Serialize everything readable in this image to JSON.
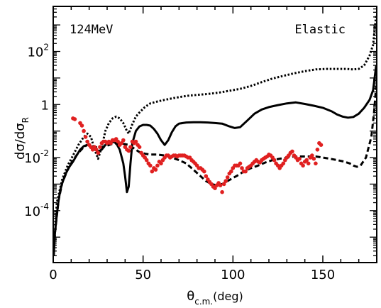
{
  "chart_data": {
    "type": "line",
    "title": "",
    "annotations": {
      "energy": "124MeV",
      "channel": "Elastic"
    },
    "xlabel": {
      "main": "θ",
      "sub": "c.m.",
      "unit": "(deg)"
    },
    "ylabel": {
      "main": "dσ/dσ",
      "sub": "R"
    },
    "xlim": [
      0,
      180
    ],
    "ylim": [
      1.1e-06,
      5000
    ],
    "yscale": "log",
    "x_ticks": [
      {
        "value": 0,
        "label": "0"
      },
      {
        "value": 50,
        "label": "50"
      },
      {
        "value": 100,
        "label": "100"
      },
      {
        "value": 150,
        "label": "150"
      }
    ],
    "y_ticks": [
      {
        "value": 0.0001,
        "base": "10",
        "exp": "-4"
      },
      {
        "value": 0.01,
        "base": "10",
        "exp": "-2"
      },
      {
        "value": 1,
        "base": "1",
        "exp": ""
      },
      {
        "value": 100,
        "base": "10",
        "exp": "2"
      }
    ],
    "series": [
      {
        "style": "solid",
        "color": "#000000",
        "points": [
          [
            0.3,
            2e-06
          ],
          [
            1,
            1.5e-05
          ],
          [
            2,
            7e-05
          ],
          [
            3,
            0.00025
          ],
          [
            4,
            0.0006
          ],
          [
            5,
            0.0011
          ],
          [
            7,
            0.0025
          ],
          [
            9,
            0.0045
          ],
          [
            11,
            0.007
          ],
          [
            13,
            0.012
          ],
          [
            15,
            0.02
          ],
          [
            17,
            0.027
          ],
          [
            19,
            0.03
          ],
          [
            21,
            0.027
          ],
          [
            23,
            0.02
          ],
          [
            25,
            0.017
          ],
          [
            27,
            0.02
          ],
          [
            29,
            0.03
          ],
          [
            31,
            0.035
          ],
          [
            33,
            0.04
          ],
          [
            35,
            0.035
          ],
          [
            37,
            0.02
          ],
          [
            39,
            0.006
          ],
          [
            40,
            0.002
          ],
          [
            41,
            0.0005
          ],
          [
            42,
            0.0008
          ],
          [
            43,
            0.006
          ],
          [
            44,
            0.035
          ],
          [
            46,
            0.1
          ],
          [
            48,
            0.15
          ],
          [
            50,
            0.17
          ],
          [
            52,
            0.17
          ],
          [
            54,
            0.16
          ],
          [
            56,
            0.12
          ],
          [
            58,
            0.08
          ],
          [
            60,
            0.045
          ],
          [
            62,
            0.03
          ],
          [
            64,
            0.045
          ],
          [
            66,
            0.09
          ],
          [
            68,
            0.15
          ],
          [
            70,
            0.19
          ],
          [
            74,
            0.21
          ],
          [
            78,
            0.215
          ],
          [
            82,
            0.215
          ],
          [
            86,
            0.21
          ],
          [
            90,
            0.2
          ],
          [
            94,
            0.19
          ],
          [
            98,
            0.15
          ],
          [
            101,
            0.13
          ],
          [
            104,
            0.14
          ],
          [
            108,
            0.25
          ],
          [
            112,
            0.45
          ],
          [
            116,
            0.65
          ],
          [
            120,
            0.8
          ],
          [
            125,
            0.95
          ],
          [
            130,
            1.1
          ],
          [
            135,
            1.2
          ],
          [
            140,
            1.05
          ],
          [
            145,
            0.9
          ],
          [
            150,
            0.75
          ],
          [
            155,
            0.55
          ],
          [
            158,
            0.42
          ],
          [
            161,
            0.35
          ],
          [
            164,
            0.32
          ],
          [
            167,
            0.34
          ],
          [
            170,
            0.45
          ],
          [
            173,
            0.75
          ],
          [
            176,
            1.5
          ],
          [
            178,
            3.5
          ],
          [
            179.7,
            30
          ]
        ]
      },
      {
        "style": "dotted",
        "color": "#000000",
        "points": [
          [
            0.3,
            3e-06
          ],
          [
            2,
            0.0002
          ],
          [
            5,
            0.0015
          ],
          [
            8,
            0.005
          ],
          [
            11,
            0.012
          ],
          [
            14,
            0.03
          ],
          [
            17,
            0.06
          ],
          [
            19,
            0.08
          ],
          [
            21,
            0.06
          ],
          [
            23,
            0.02
          ],
          [
            25,
            0.009
          ],
          [
            27,
            0.025
          ],
          [
            29,
            0.1
          ],
          [
            31,
            0.2
          ],
          [
            33,
            0.3
          ],
          [
            35,
            0.35
          ],
          [
            37,
            0.3
          ],
          [
            39,
            0.2
          ],
          [
            41,
            0.1
          ],
          [
            42,
            0.08
          ],
          [
            44,
            0.18
          ],
          [
            46,
            0.35
          ],
          [
            48,
            0.5
          ],
          [
            51,
            0.8
          ],
          [
            54,
            1.1
          ],
          [
            58,
            1.3
          ],
          [
            62,
            1.5
          ],
          [
            68,
            1.8
          ],
          [
            74,
            2.1
          ],
          [
            80,
            2.3
          ],
          [
            86,
            2.5
          ],
          [
            92,
            2.8
          ],
          [
            98,
            3.3
          ],
          [
            104,
            3.9
          ],
          [
            110,
            5
          ],
          [
            116,
            7
          ],
          [
            122,
            9.5
          ],
          [
            128,
            12
          ],
          [
            134,
            15
          ],
          [
            140,
            18
          ],
          [
            146,
            21
          ],
          [
            152,
            22
          ],
          [
            158,
            22
          ],
          [
            163,
            22
          ],
          [
            167,
            21
          ],
          [
            170,
            22
          ],
          [
            173,
            30
          ],
          [
            176,
            70
          ],
          [
            178,
            180
          ],
          [
            179.7,
            2500
          ]
        ]
      },
      {
        "style": "dashed",
        "color": "#000000",
        "points": [
          [
            0.3,
            2e-06
          ],
          [
            1,
            1.5e-05
          ],
          [
            3,
            0.00025
          ],
          [
            5,
            0.0011
          ],
          [
            8,
            0.0035
          ],
          [
            11,
            0.008
          ],
          [
            14,
            0.015
          ],
          [
            17,
            0.025
          ],
          [
            19,
            0.03
          ],
          [
            21,
            0.028
          ],
          [
            23,
            0.025
          ],
          [
            25,
            0.024
          ],
          [
            28,
            0.025
          ],
          [
            30,
            0.028
          ],
          [
            33,
            0.033
          ],
          [
            36,
            0.035
          ],
          [
            39,
            0.033
          ],
          [
            42,
            0.03
          ],
          [
            45,
            0.022
          ],
          [
            48,
            0.016
          ],
          [
            51,
            0.014
          ],
          [
            54,
            0.013
          ],
          [
            58,
            0.013
          ],
          [
            62,
            0.012
          ],
          [
            66,
            0.01
          ],
          [
            70,
            0.008
          ],
          [
            74,
            0.006
          ],
          [
            78,
            0.0035
          ],
          [
            82,
            0.002
          ],
          [
            85,
            0.0013
          ],
          [
            88,
            0.001
          ],
          [
            91,
            0.0009
          ],
          [
            94,
            0.001
          ],
          [
            97,
            0.0013
          ],
          [
            100,
            0.0017
          ],
          [
            103,
            0.0022
          ],
          [
            106,
            0.003
          ],
          [
            110,
            0.004
          ],
          [
            114,
            0.005
          ],
          [
            118,
            0.0065
          ],
          [
            122,
            0.008
          ],
          [
            126,
            0.009
          ],
          [
            130,
            0.01
          ],
          [
            134,
            0.011
          ],
          [
            138,
            0.011
          ],
          [
            142,
            0.011
          ],
          [
            146,
            0.011
          ],
          [
            150,
            0.01
          ],
          [
            154,
            0.009
          ],
          [
            158,
            0.008
          ],
          [
            162,
            0.007
          ],
          [
            165,
            0.006
          ],
          [
            167,
            0.005
          ],
          [
            169,
            0.0045
          ],
          [
            171,
            0.005
          ],
          [
            174,
            0.01
          ],
          [
            177,
            0.06
          ],
          [
            178.5,
            0.5
          ],
          [
            179.7,
            5
          ]
        ]
      }
    ],
    "scatter": {
      "color": "#e02020",
      "points": [
        [
          11,
          0.3
        ],
        [
          12,
          0.28
        ],
        [
          15,
          0.2
        ],
        [
          16,
          0.16
        ],
        [
          17,
          0.1
        ],
        [
          18,
          0.06
        ],
        [
          19,
          0.04
        ],
        [
          20,
          0.03
        ],
        [
          21,
          0.025
        ],
        [
          22,
          0.02
        ],
        [
          23,
          0.025
        ],
        [
          24,
          0.02
        ],
        [
          25,
          0.015
        ],
        [
          26,
          0.025
        ],
        [
          27,
          0.035
        ],
        [
          28,
          0.04
        ],
        [
          29,
          0.04
        ],
        [
          30,
          0.035
        ],
        [
          31,
          0.04
        ],
        [
          32,
          0.035
        ],
        [
          33,
          0.045
        ],
        [
          34,
          0.045
        ],
        [
          35,
          0.05
        ],
        [
          36,
          0.04
        ],
        [
          37,
          0.03
        ],
        [
          38,
          0.035
        ],
        [
          39,
          0.045
        ],
        [
          40,
          0.025
        ],
        [
          41,
          0.02
        ],
        [
          42,
          0.018
        ],
        [
          43,
          0.025
        ],
        [
          44,
          0.04
        ],
        [
          45,
          0.035
        ],
        [
          46,
          0.04
        ],
        [
          47,
          0.03
        ],
        [
          48,
          0.025
        ],
        [
          49,
          0.015
        ],
        [
          50,
          0.012
        ],
        [
          51,
          0.01
        ],
        [
          52,
          0.008
        ],
        [
          53,
          0.006
        ],
        [
          54,
          0.005
        ],
        [
          55,
          0.003
        ],
        [
          56,
          0.004
        ],
        [
          57,
          0.0035
        ],
        [
          58,
          0.005
        ],
        [
          59,
          0.007
        ],
        [
          60,
          0.006
        ],
        [
          61,
          0.008
        ],
        [
          62,
          0.01
        ],
        [
          63,
          0.012
        ],
        [
          64,
          0.012
        ],
        [
          65,
          0.01
        ],
        [
          66,
          0.011
        ],
        [
          67,
          0.012
        ],
        [
          68,
          0.012
        ],
        [
          69,
          0.011
        ],
        [
          70,
          0.012
        ],
        [
          71,
          0.012
        ],
        [
          72,
          0.012
        ],
        [
          73,
          0.012
        ],
        [
          74,
          0.011
        ],
        [
          75,
          0.01
        ],
        [
          76,
          0.01
        ],
        [
          77,
          0.008
        ],
        [
          78,
          0.007
        ],
        [
          79,
          0.006
        ],
        [
          80,
          0.005
        ],
        [
          81,
          0.004
        ],
        [
          82,
          0.004
        ],
        [
          83,
          0.0035
        ],
        [
          84,
          0.003
        ],
        [
          85,
          0.002
        ],
        [
          86,
          0.0015
        ],
        [
          87,
          0.0012
        ],
        [
          88,
          0.001
        ],
        [
          89,
          0.0008
        ],
        [
          90,
          0.0007
        ],
        [
          91,
          0.0009
        ],
        [
          92,
          0.0011
        ],
        [
          93,
          0.0009
        ],
        [
          94,
          0.0005
        ],
        [
          95,
          0.001
        ],
        [
          96,
          0.0013
        ],
        [
          97,
          0.0018
        ],
        [
          98,
          0.0025
        ],
        [
          99,
          0.003
        ],
        [
          100,
          0.004
        ],
        [
          101,
          0.005
        ],
        [
          102,
          0.005
        ],
        [
          103,
          0.005
        ],
        [
          104,
          0.006
        ],
        [
          105,
          0.004
        ],
        [
          106,
          0.003
        ],
        [
          107,
          0.003
        ],
        [
          108,
          0.004
        ],
        [
          109,
          0.0045
        ],
        [
          110,
          0.005
        ],
        [
          111,
          0.006
        ],
        [
          112,
          0.007
        ],
        [
          113,
          0.008
        ],
        [
          114,
          0.007
        ],
        [
          115,
          0.0065
        ],
        [
          116,
          0.008
        ],
        [
          117,
          0.009
        ],
        [
          118,
          0.01
        ],
        [
          119,
          0.011
        ],
        [
          120,
          0.013
        ],
        [
          121,
          0.012
        ],
        [
          122,
          0.01
        ],
        [
          123,
          0.008
        ],
        [
          124,
          0.006
        ],
        [
          125,
          0.005
        ],
        [
          126,
          0.004
        ],
        [
          127,
          0.005
        ],
        [
          128,
          0.006
        ],
        [
          129,
          0.008
        ],
        [
          130,
          0.01
        ],
        [
          131,
          0.012
        ],
        [
          132,
          0.015
        ],
        [
          133,
          0.017
        ],
        [
          134,
          0.012
        ],
        [
          135,
          0.01
        ],
        [
          136,
          0.008
        ],
        [
          137,
          0.009
        ],
        [
          138,
          0.006
        ],
        [
          139,
          0.005
        ],
        [
          140,
          0.007
        ],
        [
          141,
          0.008
        ],
        [
          142,
          0.006
        ],
        [
          143,
          0.01
        ],
        [
          144,
          0.012
        ],
        [
          145,
          0.009
        ],
        [
          146,
          0.006
        ],
        [
          147,
          0.02
        ],
        [
          148,
          0.035
        ],
        [
          149,
          0.03
        ]
      ]
    }
  }
}
